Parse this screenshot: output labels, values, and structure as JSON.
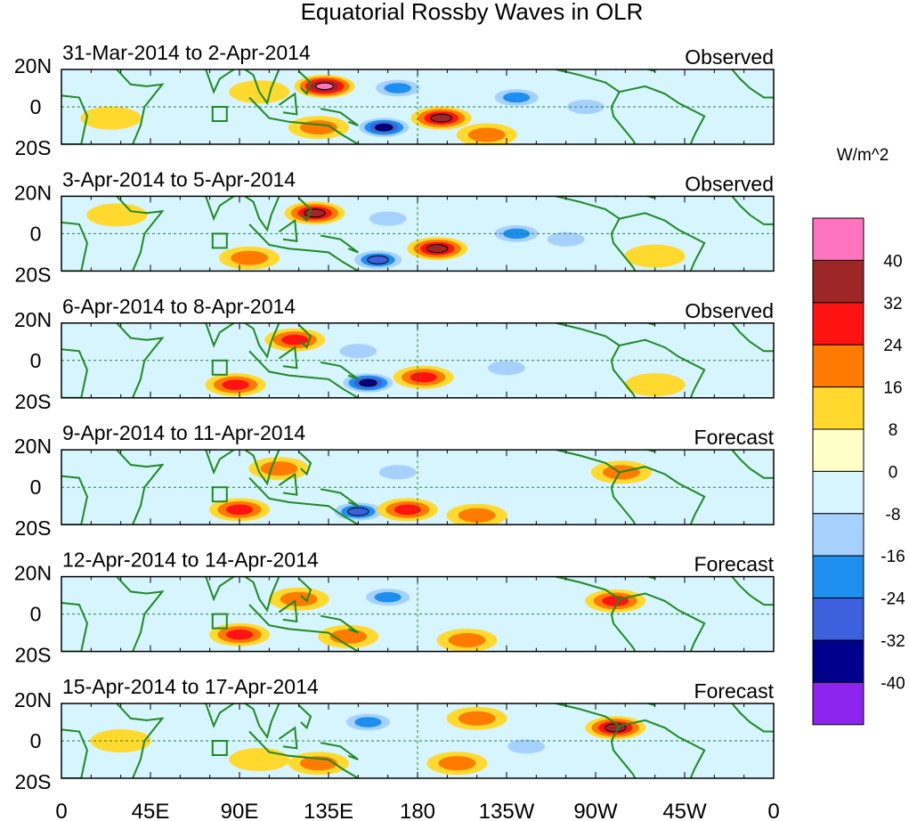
{
  "chart_data": {
    "type": "heatmap",
    "title": "Equatorial Rossby Waves in OLR",
    "colorbar": {
      "unit_label": "W/m^2",
      "levels": [
        "40",
        "32",
        "24",
        "16",
        "8",
        "0",
        "-8",
        "-16",
        "-24",
        "-32",
        "-40"
      ],
      "colors": [
        "#ff73bf",
        "#9e2626",
        "#ff1212",
        "#ff7a00",
        "#ffd92e",
        "#ffffc7",
        "#d6f5ff",
        "#a6d1ff",
        "#1c8ff0",
        "#3d61de",
        "#00008c",
        "#8c24ed"
      ]
    },
    "x_axis": {
      "ticks": [
        "0",
        "45E",
        "90E",
        "135E",
        "180",
        "135W",
        "90W",
        "45W",
        "0"
      ],
      "range_degrees_east": [
        0,
        360
      ]
    },
    "y_axis": {
      "ticks": [
        "20N",
        "0",
        "20S"
      ],
      "range_degrees": [
        -20,
        20
      ]
    },
    "panels": [
      {
        "date_range": "31-Mar-2014 to 2-Apr-2014",
        "status": "Observed",
        "anomalies": [
          {
            "lon": 133,
            "lat": 11,
            "value": 40
          },
          {
            "lon": 163,
            "lat": -11,
            "value": -40
          },
          {
            "lon": 192,
            "lat": -6,
            "value": 32
          },
          {
            "lon": 170,
            "lat": 10,
            "value": -24
          },
          {
            "lon": 230,
            "lat": 5,
            "value": -24
          },
          {
            "lon": 265,
            "lat": 0,
            "value": -16
          },
          {
            "lon": 215,
            "lat": -15,
            "value": 16
          },
          {
            "lon": 25,
            "lat": -6,
            "value": 8
          },
          {
            "lon": 100,
            "lat": 8,
            "value": 8
          },
          {
            "lon": 130,
            "lat": -11,
            "value": 16
          }
        ]
      },
      {
        "date_range": "3-Apr-2014 to 5-Apr-2014",
        "status": "Observed",
        "anomalies": [
          {
            "lon": 128,
            "lat": 11,
            "value": 32
          },
          {
            "lon": 160,
            "lat": -14,
            "value": -32
          },
          {
            "lon": 190,
            "lat": -8,
            "value": 32
          },
          {
            "lon": 95,
            "lat": -13,
            "value": 16
          },
          {
            "lon": 165,
            "lat": 8,
            "value": -16
          },
          {
            "lon": 230,
            "lat": 0,
            "value": -24
          },
          {
            "lon": 255,
            "lat": -3,
            "value": -16
          },
          {
            "lon": 28,
            "lat": 10,
            "value": 8
          },
          {
            "lon": 40,
            "lat": -5,
            "value": -8
          },
          {
            "lon": 300,
            "lat": -12,
            "value": 8
          }
        ]
      },
      {
        "date_range": "6-Apr-2014 to 8-Apr-2014",
        "status": "Observed",
        "anomalies": [
          {
            "lon": 118,
            "lat": 11,
            "value": 24
          },
          {
            "lon": 88,
            "lat": -13,
            "value": 24
          },
          {
            "lon": 155,
            "lat": -12,
            "value": -40
          },
          {
            "lon": 183,
            "lat": -9,
            "value": 24
          },
          {
            "lon": 150,
            "lat": 5,
            "value": -16
          },
          {
            "lon": 225,
            "lat": -4,
            "value": -16
          },
          {
            "lon": 300,
            "lat": -13,
            "value": 8
          },
          {
            "lon": 35,
            "lat": 8,
            "value": -8
          }
        ]
      },
      {
        "date_range": "9-Apr-2014 to 11-Apr-2014",
        "status": "Forecast",
        "anomalies": [
          {
            "lon": 90,
            "lat": -12,
            "value": 24
          },
          {
            "lon": 110,
            "lat": 10,
            "value": 16
          },
          {
            "lon": 150,
            "lat": -13,
            "value": -32
          },
          {
            "lon": 175,
            "lat": -12,
            "value": 24
          },
          {
            "lon": 210,
            "lat": -15,
            "value": 16
          },
          {
            "lon": 283,
            "lat": 8,
            "value": 16
          },
          {
            "lon": 170,
            "lat": 8,
            "value": -16
          },
          {
            "lon": 60,
            "lat": 6,
            "value": -8
          }
        ]
      },
      {
        "date_range": "12-Apr-2014 to 14-Apr-2014",
        "status": "Forecast",
        "anomalies": [
          {
            "lon": 90,
            "lat": -11,
            "value": 24
          },
          {
            "lon": 280,
            "lat": 7,
            "value": 24
          },
          {
            "lon": 165,
            "lat": 9,
            "value": -24
          },
          {
            "lon": 145,
            "lat": -12,
            "value": 16
          },
          {
            "lon": 205,
            "lat": -14,
            "value": 16
          },
          {
            "lon": 120,
            "lat": 8,
            "value": 16
          },
          {
            "lon": 40,
            "lat": -5,
            "value": -8
          },
          {
            "lon": 60,
            "lat": 5,
            "value": -8
          }
        ]
      },
      {
        "date_range": "15-Apr-2014 to 17-Apr-2014",
        "status": "Forecast",
        "anomalies": [
          {
            "lon": 280,
            "lat": 7,
            "value": 32
          },
          {
            "lon": 155,
            "lat": 10,
            "value": -24
          },
          {
            "lon": 130,
            "lat": -12,
            "value": 16
          },
          {
            "lon": 210,
            "lat": 12,
            "value": 16
          },
          {
            "lon": 200,
            "lat": -12,
            "value": 16
          },
          {
            "lon": 100,
            "lat": -10,
            "value": 8
          },
          {
            "lon": 30,
            "lat": 0,
            "value": 8
          },
          {
            "lon": 235,
            "lat": -3,
            "value": -16
          }
        ]
      }
    ]
  }
}
